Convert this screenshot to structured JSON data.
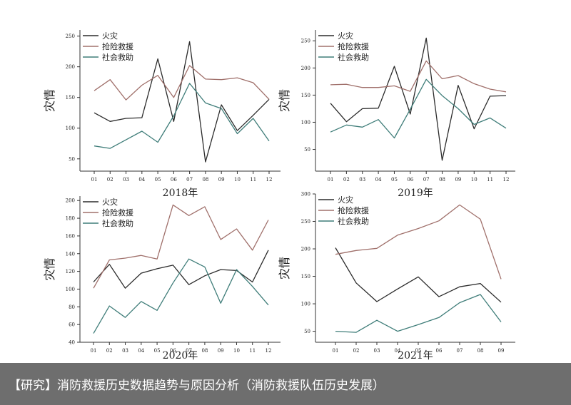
{
  "caption": "【研究】消防救援历史数据趋势与原因分析（消防救援队伍历史发展）",
  "series_colors": {
    "fire": "#2b2b2b",
    "rescue": "#a0706b",
    "social": "#3f7d79"
  },
  "chart_data": [
    {
      "type": "line",
      "xlabel": "2018年",
      "ylabel": "灾情",
      "x": [
        "01",
        "02",
        "03",
        "04",
        "05",
        "06",
        "07",
        "08",
        "09",
        "10",
        "11",
        "12"
      ],
      "ylim": [
        30,
        260
      ],
      "yticks": [
        50,
        100,
        150,
        200,
        250
      ],
      "series": [
        {
          "name": "火灾",
          "values": [
            125,
            111,
            116,
            117,
            213,
            111,
            241,
            45,
            138,
            96,
            121,
            147
          ]
        },
        {
          "name": "抢险救援",
          "values": [
            161,
            179,
            146,
            170,
            186,
            150,
            202,
            180,
            179,
            182,
            174,
            147
          ]
        },
        {
          "name": "社会救助",
          "values": [
            71,
            67,
            81,
            95,
            77,
            120,
            173,
            141,
            132,
            91,
            116,
            79
          ]
        }
      ]
    },
    {
      "type": "line",
      "xlabel": "2019年",
      "ylabel": "灾情",
      "x": [
        "01",
        "02",
        "03",
        "04",
        "05",
        "06",
        "07",
        "08",
        "09",
        "10",
        "11",
        "12"
      ],
      "ylim": [
        10,
        270
      ],
      "yticks": [
        50,
        100,
        150,
        200,
        250
      ],
      "series": [
        {
          "name": "火灾",
          "values": [
            135,
            101,
            125,
            126,
            203,
            115,
            255,
            30,
            168,
            88,
            148,
            149
          ]
        },
        {
          "name": "抢险救援",
          "values": [
            169,
            170,
            164,
            164,
            167,
            157,
            213,
            180,
            186,
            171,
            161,
            156
          ]
        },
        {
          "name": "社会救助",
          "values": [
            82,
            95,
            91,
            105,
            71,
            124,
            179,
            149,
            125,
            96,
            108,
            89
          ]
        }
      ]
    },
    {
      "type": "line",
      "xlabel": "2020年",
      "ylabel": "灾情",
      "x": [
        "01",
        "02",
        "03",
        "04",
        "05",
        "06",
        "07",
        "08",
        "09",
        "10",
        "11",
        "12"
      ],
      "ylim": [
        40,
        205
      ],
      "yticks": [
        40,
        60,
        80,
        100,
        120,
        140,
        160,
        180,
        200
      ],
      "series": [
        {
          "name": "火灾",
          "values": [
            108,
            128,
            101,
            118,
            123,
            127,
            105,
            115,
            122,
            121,
            108,
            144
          ]
        },
        {
          "name": "抢险救援",
          "values": [
            101,
            133,
            135,
            138,
            134,
            195,
            183,
            193,
            156,
            168,
            144,
            178
          ]
        },
        {
          "name": "社会救助",
          "values": [
            50,
            81,
            68,
            86,
            76,
            107,
            134,
            125,
            84,
            122,
            103,
            82
          ]
        }
      ]
    },
    {
      "type": "line",
      "xlabel": "2021年",
      "ylabel": "灾情",
      "x": [
        "01",
        "02",
        "03",
        "04",
        "05",
        "06",
        "07",
        "08",
        "09"
      ],
      "ylim": [
        30,
        300
      ],
      "yticks": [
        50,
        100,
        150,
        200,
        250,
        300
      ],
      "series": [
        {
          "name": "火灾",
          "values": [
            202,
            138,
            104,
            127,
            149,
            113,
            131,
            137,
            103
          ]
        },
        {
          "name": "抢险救援",
          "values": [
            190,
            197,
            201,
            225,
            237,
            251,
            280,
            254,
            145
          ]
        },
        {
          "name": "社会救助",
          "values": [
            50,
            48,
            70,
            50,
            62,
            75,
            102,
            117,
            67
          ]
        }
      ]
    }
  ]
}
